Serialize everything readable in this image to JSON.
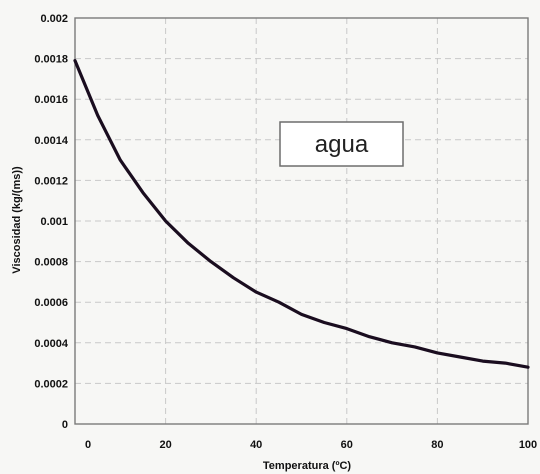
{
  "chart_data": {
    "type": "line",
    "title": "",
    "xlabel": "Temperatura (ºC)",
    "ylabel": "Viscosidad (kg/(ms))",
    "xlim": [
      0,
      100
    ],
    "ylim": [
      0,
      0.002
    ],
    "x_ticks": [
      "0",
      "20",
      "40",
      "60",
      "80",
      "100"
    ],
    "y_ticks": [
      "0",
      "0.0002",
      "0.0004",
      "0.0006",
      "0.0008",
      "0.001",
      "0.0012",
      "0.0014",
      "0.0016",
      "0.0018",
      "0.002"
    ],
    "grid": true,
    "legend_position": "upper-right",
    "series": [
      {
        "name": "agua",
        "color": "#1a0d1f",
        "x": [
          0,
          5,
          10,
          15,
          20,
          25,
          30,
          35,
          40,
          45,
          50,
          55,
          60,
          65,
          70,
          75,
          80,
          85,
          90,
          95,
          100
        ],
        "y": [
          0.00179,
          0.00152,
          0.0013,
          0.00114,
          0.001,
          0.00089,
          0.0008,
          0.00072,
          0.00065,
          0.0006,
          0.00054,
          0.0005,
          0.00047,
          0.00043,
          0.0004,
          0.00038,
          0.00035,
          0.00033,
          0.00031,
          0.0003,
          0.00028
        ]
      }
    ]
  }
}
